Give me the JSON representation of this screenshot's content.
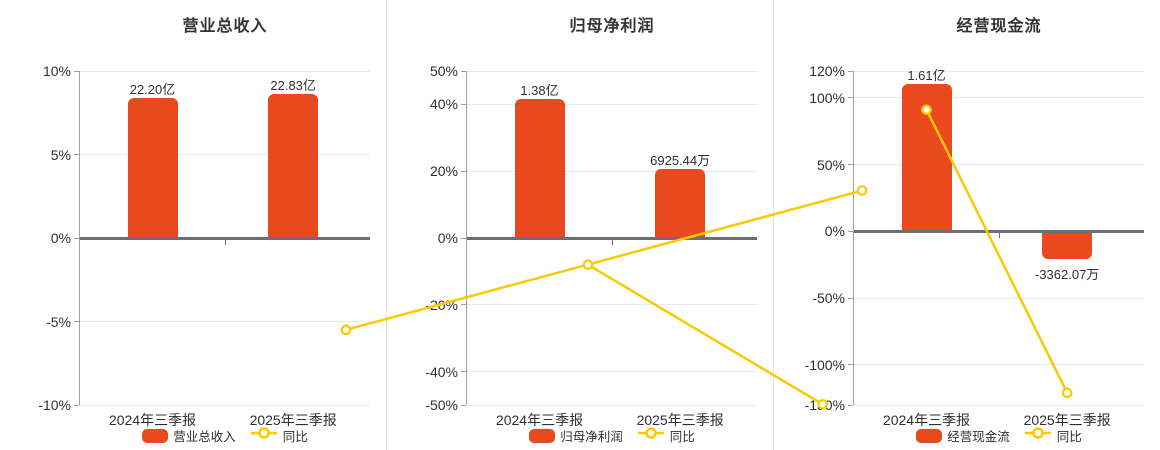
{
  "colors": {
    "bar": "#e8491d",
    "line": "#fbc902",
    "grid": "#e2eaf6",
    "zero_line": "#6b6f75",
    "axis_line": "#9aa0a6",
    "text": "#2f2f2f",
    "separator": "#e4e4e4",
    "background": "#ffffff"
  },
  "chart_data": [
    {
      "type": "bar+line",
      "title": "营业总收入",
      "categories": [
        "2024年三季报",
        "2025年三季报"
      ],
      "bar_series": {
        "name": "营业总收入",
        "value_labels": [
          "22.20亿",
          "22.83亿"
        ],
        "axis_pct": [
          8.4,
          8.65
        ]
      },
      "line_series": {
        "name": "同比",
        "values_pct": [
          -5.5,
          2.84
        ]
      },
      "ylim": [
        -10,
        10
      ],
      "yticks": [
        10,
        5,
        0,
        -5,
        -10
      ],
      "ytick_suffix": "%",
      "grid": true,
      "legend_position": "bottom"
    },
    {
      "type": "bar+line",
      "title": "归母净利润",
      "categories": [
        "2024年三季报",
        "2025年三季报"
      ],
      "bar_series": {
        "name": "归母净利润",
        "value_labels": [
          "1.38亿",
          "6925.44万"
        ],
        "axis_pct": [
          41.5,
          20.8
        ]
      },
      "line_series": {
        "name": "同比",
        "values_pct": [
          -8.0,
          -49.8
        ]
      },
      "ylim": [
        -50,
        50
      ],
      "yticks": [
        50,
        40,
        20,
        0,
        -20,
        -40,
        -50
      ],
      "ytick_suffix": "%",
      "grid": true,
      "legend_position": "bottom"
    },
    {
      "type": "bar+line",
      "title": "经营现金流",
      "categories": [
        "2024年三季报",
        "2025年三季报"
      ],
      "bar_series": {
        "name": "经营现金流",
        "value_labels": [
          "1.61亿",
          "-3362.07万"
        ],
        "axis_pct": [
          110,
          -21
        ]
      },
      "line_series": {
        "name": "同比",
        "values_pct": [
          91,
          -120.88
        ]
      },
      "ylim": [
        -130,
        120
      ],
      "yticks": [
        120,
        100,
        50,
        0,
        -50,
        -100,
        -130
      ],
      "ytick_suffix": "%",
      "grid": true,
      "legend_position": "bottom"
    }
  ]
}
